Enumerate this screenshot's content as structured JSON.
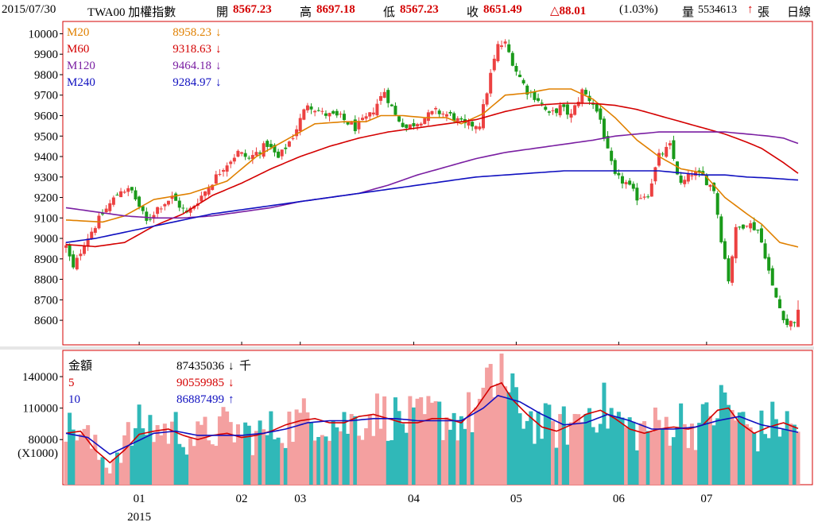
{
  "header": {
    "date": "2015/07/30",
    "symbol": "TWA00 加權指數",
    "open_label": "開",
    "open": "8567.23",
    "high_label": "高",
    "high": "8697.18",
    "low_label": "低",
    "low": "8567.23",
    "close_label": "收",
    "close": "8651.49",
    "change": "△88.01",
    "change_pct": "(1.03%)",
    "volume_label": "量",
    "volume": "5534613",
    "volume_arrow": "↑",
    "volume_unit": "張",
    "period": "日線"
  },
  "price_legend": [
    {
      "name": "M20",
      "value": "8958.23",
      "arrow": "↓",
      "color": "#e08000"
    },
    {
      "name": "M60",
      "value": "9318.63",
      "arrow": "↓",
      "color": "#d40000"
    },
    {
      "name": "M120",
      "value": "9464.18",
      "arrow": "↓",
      "color": "#7a1fa2"
    },
    {
      "name": "M240",
      "value": "9284.97",
      "arrow": "↓",
      "color": "#1010c0"
    }
  ],
  "volume_legend": [
    {
      "name": "金額",
      "value": "87435036",
      "arrow": "↓",
      "suffix": "千",
      "color": "#000000"
    },
    {
      "name": "5",
      "value": "90559985",
      "arrow": "↓",
      "suffix": "",
      "color": "#d40000"
    },
    {
      "name": "10",
      "value": "86887499",
      "arrow": "↑",
      "suffix": "",
      "color": "#1010c0"
    }
  ],
  "colors": {
    "up": "#ec4141",
    "down": "#1a9a1a",
    "vol_up": "#f4a0a0",
    "vol_down": "#30b8b8",
    "m20": "#e08000",
    "m60": "#d40000",
    "m120": "#7a1fa2",
    "m240": "#1010c0",
    "vma5": "#d40000",
    "vma10": "#1010c0",
    "frame": "#d40000"
  },
  "chart_data": {
    "type": "candlestick",
    "price_axis": {
      "ticks": [
        8600,
        8700,
        8800,
        8900,
        9000,
        9100,
        9200,
        9300,
        9400,
        9500,
        9600,
        9700,
        9800,
        9900,
        10000
      ],
      "range": [
        8480,
        10060
      ]
    },
    "volume_axis": {
      "ticks": [
        80000,
        110000,
        140000
      ],
      "range": [
        37000,
        165000
      ],
      "unit_label": "(X1000)"
    },
    "x_axis": {
      "month_labels": [
        "01",
        "02",
        "03",
        "04",
        "05",
        "06",
        "07"
      ],
      "month_start_index": [
        20,
        48,
        64,
        95,
        123,
        151,
        175
      ],
      "year_label": "2015"
    },
    "close_anchors": [
      [
        0,
        8960
      ],
      [
        2,
        8850
      ],
      [
        5,
        8980
      ],
      [
        10,
        9120
      ],
      [
        15,
        9240
      ],
      [
        18,
        9230
      ],
      [
        22,
        9080
      ],
      [
        25,
        9150
      ],
      [
        29,
        9200
      ],
      [
        33,
        9120
      ],
      [
        38,
        9230
      ],
      [
        43,
        9350
      ],
      [
        47,
        9420
      ],
      [
        50,
        9390
      ],
      [
        55,
        9460
      ],
      [
        58,
        9390
      ],
      [
        62,
        9500
      ],
      [
        66,
        9660
      ],
      [
        70,
        9610
      ],
      [
        75,
        9590
      ],
      [
        79,
        9540
      ],
      [
        83,
        9600
      ],
      [
        87,
        9720
      ],
      [
        90,
        9600
      ],
      [
        93,
        9540
      ],
      [
        97,
        9580
      ],
      [
        101,
        9620
      ],
      [
        105,
        9600
      ],
      [
        109,
        9550
      ],
      [
        113,
        9560
      ],
      [
        116,
        9800
      ],
      [
        118,
        9940
      ],
      [
        120,
        9950
      ],
      [
        123,
        9820
      ],
      [
        126,
        9720
      ],
      [
        129,
        9680
      ],
      [
        132,
        9600
      ],
      [
        135,
        9640
      ],
      [
        138,
        9600
      ],
      [
        141,
        9720
      ],
      [
        144,
        9660
      ],
      [
        146,
        9580
      ],
      [
        148,
        9420
      ],
      [
        150,
        9300
      ],
      [
        153,
        9270
      ],
      [
        156,
        9200
      ],
      [
        159,
        9220
      ],
      [
        162,
        9400
      ],
      [
        165,
        9450
      ],
      [
        168,
        9260
      ],
      [
        171,
        9320
      ],
      [
        174,
        9300
      ],
      [
        177,
        9240
      ],
      [
        179,
        9000
      ],
      [
        181,
        8800
      ],
      [
        183,
        9040
      ],
      [
        186,
        9080
      ],
      [
        189,
        9040
      ],
      [
        191,
        8920
      ],
      [
        193,
        8760
      ],
      [
        195,
        8660
      ],
      [
        197,
        8580
      ],
      [
        199,
        8600
      ],
      [
        200,
        8651
      ]
    ],
    "volume_anchors": [
      [
        0,
        84000
      ],
      [
        3,
        90000
      ],
      [
        6,
        78000
      ],
      [
        9,
        62000
      ],
      [
        12,
        56000
      ],
      [
        15,
        72000
      ],
      [
        18,
        82000
      ],
      [
        21,
        93000
      ],
      [
        24,
        88000
      ],
      [
        27,
        86000
      ],
      [
        30,
        88000
      ],
      [
        33,
        82000
      ],
      [
        36,
        78000
      ],
      [
        40,
        86000
      ],
      [
        44,
        89000
      ],
      [
        48,
        84000
      ],
      [
        52,
        82000
      ],
      [
        56,
        86000
      ],
      [
        60,
        90000
      ],
      [
        64,
        95000
      ],
      [
        68,
        100000
      ],
      [
        72,
        94000
      ],
      [
        76,
        92000
      ],
      [
        80,
        96000
      ],
      [
        84,
        102000
      ],
      [
        88,
        100000
      ],
      [
        92,
        96000
      ],
      [
        96,
        94000
      ],
      [
        100,
        100000
      ],
      [
        104,
        98000
      ],
      [
        108,
        96000
      ],
      [
        112,
        104000
      ],
      [
        116,
        124000
      ],
      [
        118,
        132000
      ],
      [
        120,
        120000
      ],
      [
        123,
        110000
      ],
      [
        126,
        100000
      ],
      [
        129,
        92000
      ],
      [
        132,
        90000
      ],
      [
        135,
        88000
      ],
      [
        138,
        92000
      ],
      [
        141,
        100000
      ],
      [
        144,
        110000
      ],
      [
        147,
        106000
      ],
      [
        150,
        98000
      ],
      [
        153,
        90000
      ],
      [
        156,
        86000
      ],
      [
        159,
        88000
      ],
      [
        162,
        90000
      ],
      [
        165,
        92000
      ],
      [
        168,
        96000
      ],
      [
        171,
        88000
      ],
      [
        174,
        92000
      ],
      [
        177,
        104000
      ],
      [
        180,
        112000
      ],
      [
        183,
        100000
      ],
      [
        186,
        88000
      ],
      [
        189,
        84000
      ],
      [
        192,
        92000
      ],
      [
        195,
        94000
      ],
      [
        198,
        90000
      ],
      [
        200,
        87000
      ]
    ],
    "ma_series": {
      "M20": [
        [
          0,
          9090
        ],
        [
          10,
          9080
        ],
        [
          16,
          9110
        ],
        [
          24,
          9190
        ],
        [
          34,
          9220
        ],
        [
          44,
          9280
        ],
        [
          52,
          9400
        ],
        [
          60,
          9480
        ],
        [
          68,
          9560
        ],
        [
          76,
          9570
        ],
        [
          82,
          9570
        ],
        [
          86,
          9600
        ],
        [
          92,
          9600
        ],
        [
          98,
          9590
        ],
        [
          104,
          9590
        ],
        [
          108,
          9560
        ],
        [
          114,
          9610
        ],
        [
          120,
          9700
        ],
        [
          126,
          9710
        ],
        [
          132,
          9730
        ],
        [
          138,
          9730
        ],
        [
          144,
          9680
        ],
        [
          150,
          9590
        ],
        [
          156,
          9480
        ],
        [
          162,
          9400
        ],
        [
          168,
          9340
        ],
        [
          174,
          9320
        ],
        [
          180,
          9200
        ],
        [
          186,
          9120
        ],
        [
          190,
          9070
        ],
        [
          195,
          8980
        ],
        [
          200,
          8958
        ]
      ],
      "M60": [
        [
          0,
          8970
        ],
        [
          8,
          8960
        ],
        [
          16,
          8980
        ],
        [
          24,
          9060
        ],
        [
          32,
          9120
        ],
        [
          40,
          9210
        ],
        [
          48,
          9270
        ],
        [
          56,
          9340
        ],
        [
          64,
          9400
        ],
        [
          72,
          9450
        ],
        [
          80,
          9490
        ],
        [
          88,
          9520
        ],
        [
          96,
          9540
        ],
        [
          104,
          9560
        ],
        [
          112,
          9580
        ],
        [
          120,
          9620
        ],
        [
          128,
          9650
        ],
        [
          136,
          9660
        ],
        [
          144,
          9660
        ],
        [
          150,
          9650
        ],
        [
          156,
          9630
        ],
        [
          162,
          9600
        ],
        [
          168,
          9570
        ],
        [
          174,
          9540
        ],
        [
          180,
          9510
        ],
        [
          186,
          9470
        ],
        [
          190,
          9440
        ],
        [
          196,
          9370
        ],
        [
          200,
          9318
        ]
      ],
      "M120": [
        [
          0,
          9150
        ],
        [
          8,
          9130
        ],
        [
          16,
          9110
        ],
        [
          24,
          9100
        ],
        [
          32,
          9100
        ],
        [
          40,
          9110
        ],
        [
          48,
          9130
        ],
        [
          56,
          9150
        ],
        [
          64,
          9180
        ],
        [
          72,
          9200
        ],
        [
          80,
          9220
        ],
        [
          88,
          9260
        ],
        [
          96,
          9310
        ],
        [
          104,
          9350
        ],
        [
          112,
          9390
        ],
        [
          120,
          9420
        ],
        [
          128,
          9440
        ],
        [
          136,
          9460
        ],
        [
          144,
          9480
        ],
        [
          150,
          9500
        ],
        [
          156,
          9510
        ],
        [
          162,
          9520
        ],
        [
          168,
          9520
        ],
        [
          174,
          9520
        ],
        [
          180,
          9520
        ],
        [
          186,
          9510
        ],
        [
          192,
          9500
        ],
        [
          196,
          9490
        ],
        [
          200,
          9464
        ]
      ],
      "M240": [
        [
          0,
          8980
        ],
        [
          8,
          9000
        ],
        [
          16,
          9030
        ],
        [
          24,
          9060
        ],
        [
          32,
          9090
        ],
        [
          40,
          9120
        ],
        [
          48,
          9140
        ],
        [
          56,
          9160
        ],
        [
          64,
          9180
        ],
        [
          72,
          9200
        ],
        [
          80,
          9220
        ],
        [
          88,
          9240
        ],
        [
          96,
          9260
        ],
        [
          104,
          9280
        ],
        [
          112,
          9300
        ],
        [
          120,
          9310
        ],
        [
          128,
          9320
        ],
        [
          136,
          9330
        ],
        [
          144,
          9330
        ],
        [
          150,
          9330
        ],
        [
          156,
          9330
        ],
        [
          162,
          9330
        ],
        [
          168,
          9320
        ],
        [
          174,
          9310
        ],
        [
          180,
          9310
        ],
        [
          186,
          9300
        ],
        [
          192,
          9295
        ],
        [
          196,
          9290
        ],
        [
          200,
          9285
        ]
      ]
    },
    "vma_series": {
      "5": [
        [
          0,
          86000
        ],
        [
          4,
          88000
        ],
        [
          8,
          70000
        ],
        [
          12,
          58000
        ],
        [
          16,
          70000
        ],
        [
          20,
          85000
        ],
        [
          24,
          88000
        ],
        [
          28,
          90000
        ],
        [
          32,
          84000
        ],
        [
          36,
          80000
        ],
        [
          40,
          84000
        ],
        [
          44,
          86000
        ],
        [
          48,
          82000
        ],
        [
          52,
          84000
        ],
        [
          56,
          88000
        ],
        [
          60,
          94000
        ],
        [
          64,
          98000
        ],
        [
          68,
          100000
        ],
        [
          72,
          96000
        ],
        [
          76,
          96000
        ],
        [
          80,
          102000
        ],
        [
          84,
          104000
        ],
        [
          88,
          100000
        ],
        [
          92,
          96000
        ],
        [
          96,
          96000
        ],
        [
          100,
          100000
        ],
        [
          104,
          100000
        ],
        [
          108,
          96000
        ],
        [
          112,
          110000
        ],
        [
          116,
          130000
        ],
        [
          119,
          134000
        ],
        [
          122,
          118000
        ],
        [
          126,
          104000
        ],
        [
          130,
          92000
        ],
        [
          134,
          88000
        ],
        [
          138,
          94000
        ],
        [
          142,
          104000
        ],
        [
          146,
          108000
        ],
        [
          150,
          100000
        ],
        [
          154,
          90000
        ],
        [
          158,
          86000
        ],
        [
          162,
          90000
        ],
        [
          166,
          92000
        ],
        [
          170,
          90000
        ],
        [
          174,
          94000
        ],
        [
          178,
          108000
        ],
        [
          181,
          110000
        ],
        [
          184,
          96000
        ],
        [
          188,
          86000
        ],
        [
          192,
          92000
        ],
        [
          196,
          96000
        ],
        [
          200,
          90559
        ]
      ],
      "10": [
        [
          0,
          86000
        ],
        [
          6,
          82000
        ],
        [
          12,
          66000
        ],
        [
          18,
          76000
        ],
        [
          24,
          86000
        ],
        [
          30,
          88000
        ],
        [
          36,
          84000
        ],
        [
          42,
          84000
        ],
        [
          48,
          84000
        ],
        [
          54,
          86000
        ],
        [
          60,
          90000
        ],
        [
          66,
          96000
        ],
        [
          72,
          98000
        ],
        [
          78,
          98000
        ],
        [
          84,
          100000
        ],
        [
          90,
          100000
        ],
        [
          96,
          98000
        ],
        [
          102,
          98000
        ],
        [
          108,
          98000
        ],
        [
          114,
          110000
        ],
        [
          118,
          122000
        ],
        [
          124,
          116000
        ],
        [
          130,
          104000
        ],
        [
          136,
          94000
        ],
        [
          142,
          96000
        ],
        [
          148,
          104000
        ],
        [
          154,
          98000
        ],
        [
          160,
          90000
        ],
        [
          166,
          90000
        ],
        [
          172,
          92000
        ],
        [
          178,
          98000
        ],
        [
          184,
          102000
        ],
        [
          190,
          94000
        ],
        [
          196,
          90000
        ],
        [
          200,
          86887
        ]
      ]
    }
  }
}
